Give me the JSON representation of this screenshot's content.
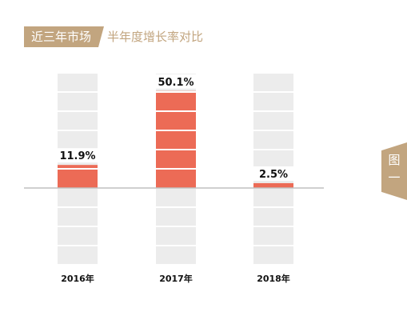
{
  "header": {
    "tag_label": "近三年市场",
    "title_rest": "半年度增长率对比"
  },
  "side_tab": {
    "label": "图",
    "number": "一"
  },
  "colors": {
    "accent": "#c2a57f",
    "bar": "#ec6b56",
    "track": "#ececec",
    "axis": "#bfbfbf"
  },
  "chart_data": {
    "type": "bar",
    "categories": [
      "2016年",
      "2017年",
      "2018年"
    ],
    "values": [
      11.9,
      50.1,
      2.5
    ],
    "value_labels": [
      "11.9%",
      "50.1%",
      "2.5%"
    ],
    "title": "近三年市场半年度增长率对比",
    "xlabel": "",
    "ylabel": "",
    "ylim": [
      -40,
      60
    ],
    "grid": false,
    "legend": "none"
  }
}
